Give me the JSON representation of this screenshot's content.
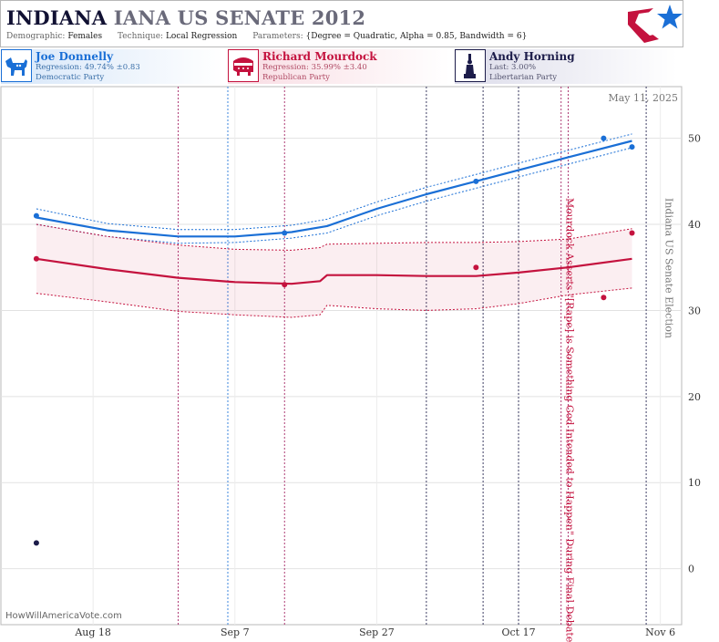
{
  "header": {
    "state": "INDIANA",
    "race": "IANA US SENATE 2012",
    "demographic_label": "Demographic:",
    "demographic_value": "Females",
    "technique_label": "Technique:",
    "technique_value": "Local Regression",
    "parameters_label": "Parameters:",
    "parameters_value": "{Degree = Quadratic, Alpha = 0.85, Bandwidth = 6}",
    "logo_icon": "star-logo-icon"
  },
  "candidates": [
    {
      "name": "Joe Donnelly",
      "stat": "Regression: 49.74% ±0.83",
      "party": "Democratic Party",
      "icon": "donkey-icon",
      "color": "#1a6fd6"
    },
    {
      "name": "Richard Mourdock",
      "stat": "Regression: 35.99% ±3.40",
      "party": "Republican Party",
      "icon": "elephant-icon",
      "color": "#c4123e"
    },
    {
      "name": "Andy Horning",
      "stat": "Last: 3.00%",
      "party": "Libertarian Party",
      "icon": "liberty-statue-icon",
      "color": "#1c1c4a"
    }
  ],
  "chart_data": {
    "type": "line",
    "date_label": "May 11, 2025",
    "source": "HowWillAmericaVote.com",
    "x_ticks": [
      "Aug 18",
      "Sep 7",
      "Sep 27",
      "Oct 17",
      "Nov 6"
    ],
    "x_range": [
      "2012-08-05",
      "2012-11-09"
    ],
    "y_ticks": [
      0,
      10,
      20,
      30,
      40,
      50
    ],
    "ylim": [
      -6.5,
      56
    ],
    "grid": true,
    "y_axis_side": "right",
    "annotations": [
      {
        "date": "2012-10-23",
        "text": "Mourdock Asserts \"[Rape] is Something God Intended to Happen\" During Final Debate",
        "color": "#c4123e"
      },
      {
        "date": "2012-11-06",
        "text": "Indiana US Senate Election",
        "color": "#777777"
      }
    ],
    "event_lines": [
      {
        "date": "2012-08-30",
        "color": "#a0185c"
      },
      {
        "date": "2012-09-06",
        "color": "#1a6fd6"
      },
      {
        "date": "2012-09-14",
        "color": "#a0185c"
      },
      {
        "date": "2012-10-04",
        "color": "#1c1c4a"
      },
      {
        "date": "2012-10-12",
        "color": "#1c1c4a"
      },
      {
        "date": "2012-10-17",
        "color": "#1c1c4a"
      },
      {
        "date": "2012-10-23",
        "color": "#a0185c"
      },
      {
        "date": "2012-10-24",
        "color": "#a0185c"
      },
      {
        "date": "2012-11-04",
        "color": "#1c1c4a"
      }
    ],
    "series": [
      {
        "name": "Joe Donnelly",
        "color": "#1a6fd6",
        "band_style": "dotted",
        "points": [
          {
            "x": "2012-08-10",
            "y": 41
          },
          {
            "x": "2012-09-14",
            "y": 39
          },
          {
            "x": "2012-10-11",
            "y": 45
          },
          {
            "x": "2012-10-29",
            "y": 50
          },
          {
            "x": "2012-11-02",
            "y": 49
          }
        ],
        "fit": [
          {
            "x": "2012-08-10",
            "y": 40.8
          },
          {
            "x": "2012-08-20",
            "y": 39.3
          },
          {
            "x": "2012-08-30",
            "y": 38.6
          },
          {
            "x": "2012-09-07",
            "y": 38.6
          },
          {
            "x": "2012-09-15",
            "y": 39.1
          },
          {
            "x": "2012-09-20",
            "y": 39.8
          },
          {
            "x": "2012-09-27",
            "y": 41.8
          },
          {
            "x": "2012-10-04",
            "y": 43.5
          },
          {
            "x": "2012-10-11",
            "y": 45.0
          },
          {
            "x": "2012-10-17",
            "y": 46.3
          },
          {
            "x": "2012-10-24",
            "y": 47.8
          },
          {
            "x": "2012-11-02",
            "y": 49.7
          }
        ],
        "lower": [
          {
            "x": "2012-08-10",
            "y": 40.0
          },
          {
            "x": "2012-08-20",
            "y": 38.6
          },
          {
            "x": "2012-08-30",
            "y": 37.8
          },
          {
            "x": "2012-09-07",
            "y": 37.9
          },
          {
            "x": "2012-09-15",
            "y": 38.4
          },
          {
            "x": "2012-09-20",
            "y": 39.0
          },
          {
            "x": "2012-09-27",
            "y": 41.0
          },
          {
            "x": "2012-10-04",
            "y": 42.7
          },
          {
            "x": "2012-10-11",
            "y": 44.2
          },
          {
            "x": "2012-10-17",
            "y": 45.5
          },
          {
            "x": "2012-10-24",
            "y": 47.0
          },
          {
            "x": "2012-11-02",
            "y": 48.9
          }
        ],
        "upper": [
          {
            "x": "2012-08-10",
            "y": 41.8
          },
          {
            "x": "2012-08-20",
            "y": 40.1
          },
          {
            "x": "2012-08-30",
            "y": 39.4
          },
          {
            "x": "2012-09-07",
            "y": 39.4
          },
          {
            "x": "2012-09-15",
            "y": 39.9
          },
          {
            "x": "2012-09-20",
            "y": 40.6
          },
          {
            "x": "2012-09-27",
            "y": 42.6
          },
          {
            "x": "2012-10-04",
            "y": 44.3
          },
          {
            "x": "2012-10-11",
            "y": 45.8
          },
          {
            "x": "2012-10-17",
            "y": 47.1
          },
          {
            "x": "2012-10-24",
            "y": 48.6
          },
          {
            "x": "2012-11-02",
            "y": 50.5
          }
        ]
      },
      {
        "name": "Richard Mourdock",
        "color": "#c4123e",
        "band_style": "shaded",
        "points": [
          {
            "x": "2012-08-10",
            "y": 36
          },
          {
            "x": "2012-09-14",
            "y": 33
          },
          {
            "x": "2012-10-11",
            "y": 35
          },
          {
            "x": "2012-10-29",
            "y": 31.5
          },
          {
            "x": "2012-11-02",
            "y": 39
          }
        ],
        "fit": [
          {
            "x": "2012-08-10",
            "y": 36.0
          },
          {
            "x": "2012-08-20",
            "y": 34.8
          },
          {
            "x": "2012-08-30",
            "y": 33.8
          },
          {
            "x": "2012-09-07",
            "y": 33.3
          },
          {
            "x": "2012-09-15",
            "y": 33.1
          },
          {
            "x": "2012-09-19",
            "y": 33.4
          },
          {
            "x": "2012-09-20",
            "y": 34.1
          },
          {
            "x": "2012-09-27",
            "y": 34.1
          },
          {
            "x": "2012-10-04",
            "y": 34.0
          },
          {
            "x": "2012-10-11",
            "y": 34.0
          },
          {
            "x": "2012-10-17",
            "y": 34.4
          },
          {
            "x": "2012-10-24",
            "y": 35.0
          },
          {
            "x": "2012-11-02",
            "y": 36.0
          }
        ],
        "lower": [
          {
            "x": "2012-08-10",
            "y": 32.0
          },
          {
            "x": "2012-08-20",
            "y": 31.0
          },
          {
            "x": "2012-08-30",
            "y": 29.9
          },
          {
            "x": "2012-09-07",
            "y": 29.5
          },
          {
            "x": "2012-09-15",
            "y": 29.2
          },
          {
            "x": "2012-09-19",
            "y": 29.5
          },
          {
            "x": "2012-09-20",
            "y": 30.6
          },
          {
            "x": "2012-09-27",
            "y": 30.2
          },
          {
            "x": "2012-10-04",
            "y": 30.0
          },
          {
            "x": "2012-10-11",
            "y": 30.2
          },
          {
            "x": "2012-10-17",
            "y": 30.8
          },
          {
            "x": "2012-10-24",
            "y": 31.8
          },
          {
            "x": "2012-11-02",
            "y": 32.6
          }
        ],
        "upper": [
          {
            "x": "2012-08-10",
            "y": 40.0
          },
          {
            "x": "2012-08-20",
            "y": 38.6
          },
          {
            "x": "2012-08-30",
            "y": 37.6
          },
          {
            "x": "2012-09-07",
            "y": 37.1
          },
          {
            "x": "2012-09-15",
            "y": 37.0
          },
          {
            "x": "2012-09-19",
            "y": 37.3
          },
          {
            "x": "2012-09-20",
            "y": 37.7
          },
          {
            "x": "2012-09-27",
            "y": 37.8
          },
          {
            "x": "2012-10-04",
            "y": 37.9
          },
          {
            "x": "2012-10-11",
            "y": 37.9
          },
          {
            "x": "2012-10-17",
            "y": 38.0
          },
          {
            "x": "2012-10-24",
            "y": 38.3
          },
          {
            "x": "2012-11-02",
            "y": 39.5
          }
        ]
      },
      {
        "name": "Andy Horning",
        "color": "#1c1c4a",
        "band_style": "none",
        "points": [
          {
            "x": "2012-08-10",
            "y": 3
          }
        ]
      }
    ]
  }
}
